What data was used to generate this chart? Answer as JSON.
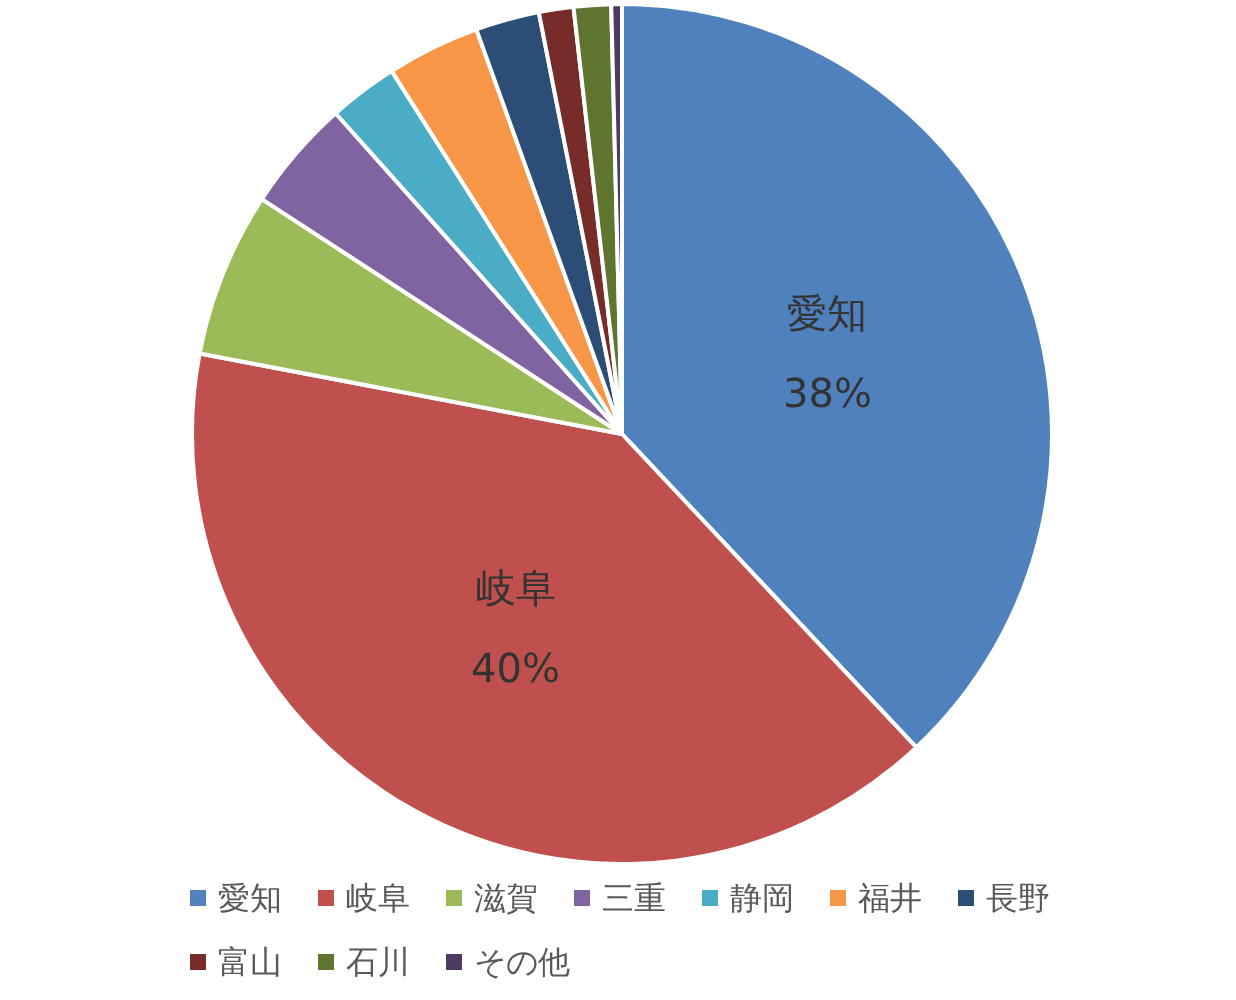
{
  "chart_data": {
    "type": "pie",
    "categories": [
      "愛知",
      "岐阜",
      "滋賀",
      "三重",
      "静岡",
      "福井",
      "長野",
      "富山",
      "石川",
      "その他"
    ],
    "values": [
      38,
      40,
      6.2,
      4.2,
      2.6,
      3.5,
      2.4,
      1.3,
      1.4,
      0.4
    ],
    "colors": [
      "#4f81bd",
      "#c0504d",
      "#9bbb59",
      "#8064a2",
      "#4bacc6",
      "#f79646",
      "#2c4d75",
      "#772c2a",
      "#5f7530",
      "#4d3b62"
    ],
    "value_labels": [
      "38%",
      "40%",
      null,
      null,
      null,
      null,
      null,
      null,
      null,
      null
    ],
    "legend": "bottom"
  }
}
